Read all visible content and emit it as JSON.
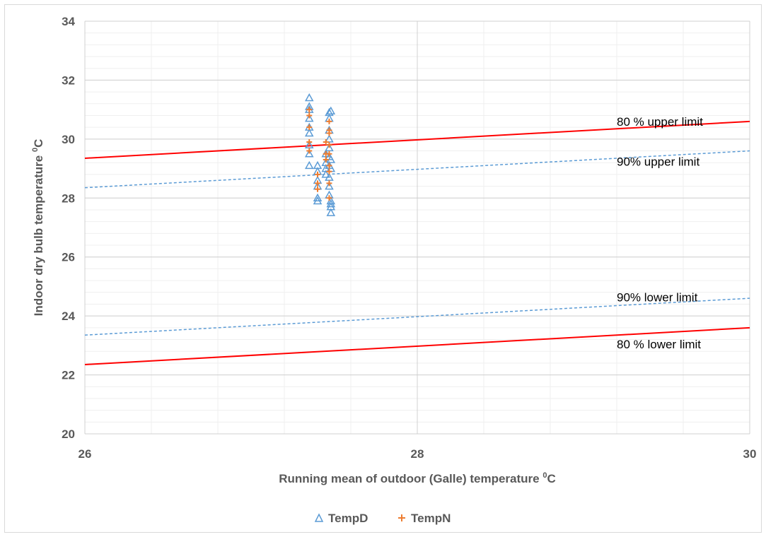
{
  "chart_data": {
    "type": "scatter",
    "title": "",
    "xlabel": "Running mean of outdoor (Galle) temperature ",
    "xlabel_unit": "C",
    "ylabel": "Indoor dry bulb temperature ",
    "ylabel_unit": "C",
    "degree_sup": "0",
    "xlim": [
      26,
      30
    ],
    "ylim": [
      20,
      34
    ],
    "x_ticks": [
      26,
      28,
      30
    ],
    "x_tick_labels": [
      "26",
      "28",
      "30"
    ],
    "y_ticks": [
      20,
      22,
      24,
      26,
      28,
      30,
      32,
      34
    ],
    "y_tick_labels": [
      "20",
      "22",
      "24",
      "26",
      "28",
      "30",
      "32",
      "34"
    ],
    "grid": true,
    "legend_position": "bottom",
    "series": [
      {
        "name": "TempD",
        "marker": "triangle",
        "color": "#5b9bd5",
        "points": [
          [
            27.35,
            31.4
          ],
          [
            27.35,
            31.1
          ],
          [
            27.35,
            31.0
          ],
          [
            27.35,
            30.7
          ],
          [
            27.35,
            30.4
          ],
          [
            27.35,
            30.2
          ],
          [
            27.35,
            29.8
          ],
          [
            27.35,
            29.5
          ],
          [
            27.35,
            29.1
          ],
          [
            27.4,
            29.1
          ],
          [
            27.4,
            28.9
          ],
          [
            27.4,
            28.6
          ],
          [
            27.4,
            28.4
          ],
          [
            27.4,
            28.0
          ],
          [
            27.4,
            27.9
          ],
          [
            27.45,
            29.5
          ],
          [
            27.45,
            29.2
          ],
          [
            27.45,
            29.0
          ],
          [
            27.45,
            28.8
          ],
          [
            27.47,
            30.9
          ],
          [
            27.47,
            30.7
          ],
          [
            27.47,
            30.3
          ],
          [
            27.47,
            30.0
          ],
          [
            27.47,
            29.7
          ],
          [
            27.47,
            29.4
          ],
          [
            27.47,
            29.1
          ],
          [
            27.47,
            28.7
          ],
          [
            27.47,
            28.4
          ],
          [
            27.47,
            28.1
          ],
          [
            27.48,
            30.95
          ],
          [
            27.48,
            29.3
          ],
          [
            27.48,
            29.0
          ],
          [
            27.48,
            27.9
          ],
          [
            27.48,
            27.8
          ],
          [
            27.48,
            27.7
          ],
          [
            27.48,
            27.5
          ]
        ]
      },
      {
        "name": "TempN",
        "marker": "plus",
        "color": "#ed7d31",
        "points": [
          [
            27.35,
            31.0
          ],
          [
            27.35,
            30.8
          ],
          [
            27.35,
            30.4
          ],
          [
            27.35,
            29.9
          ],
          [
            27.35,
            29.6
          ],
          [
            27.4,
            28.8
          ],
          [
            27.4,
            28.5
          ],
          [
            27.4,
            28.3
          ],
          [
            27.45,
            29.9
          ],
          [
            27.45,
            29.5
          ],
          [
            27.45,
            29.3
          ],
          [
            27.47,
            30.6
          ],
          [
            27.47,
            30.3
          ],
          [
            27.47,
            30.2
          ],
          [
            27.47,
            29.8
          ],
          [
            27.47,
            29.5
          ],
          [
            27.47,
            29.1
          ],
          [
            27.47,
            28.9
          ],
          [
            27.47,
            28.5
          ],
          [
            27.47,
            28.0
          ]
        ]
      },
      {
        "name": "80 % upper limit",
        "type": "line",
        "color": "#ff0000",
        "dash": false,
        "x": [
          26,
          30
        ],
        "y": [
          29.35,
          30.6
        ]
      },
      {
        "name": "90% upper limit",
        "type": "line",
        "color": "#5b9bd5",
        "dash": true,
        "x": [
          26,
          30
        ],
        "y": [
          28.35,
          29.6
        ]
      },
      {
        "name": "90% lower limit",
        "type": "line",
        "color": "#5b9bd5",
        "dash": true,
        "x": [
          26,
          30
        ],
        "y": [
          23.35,
          24.6
        ]
      },
      {
        "name": "80 % lower limit",
        "type": "line",
        "color": "#ff0000",
        "dash": false,
        "x": [
          26,
          30
        ],
        "y": [
          22.35,
          23.6
        ]
      }
    ],
    "annotations": [
      {
        "text": "80 % upper limit",
        "x": 29.2,
        "y": 30.45
      },
      {
        "text": "90% upper limit",
        "x": 29.2,
        "y": 29.1
      },
      {
        "text": "90% lower limit",
        "x": 29.2,
        "y": 24.5
      },
      {
        "text": "80 % lower limit",
        "x": 29.2,
        "y": 22.9
      }
    ]
  }
}
